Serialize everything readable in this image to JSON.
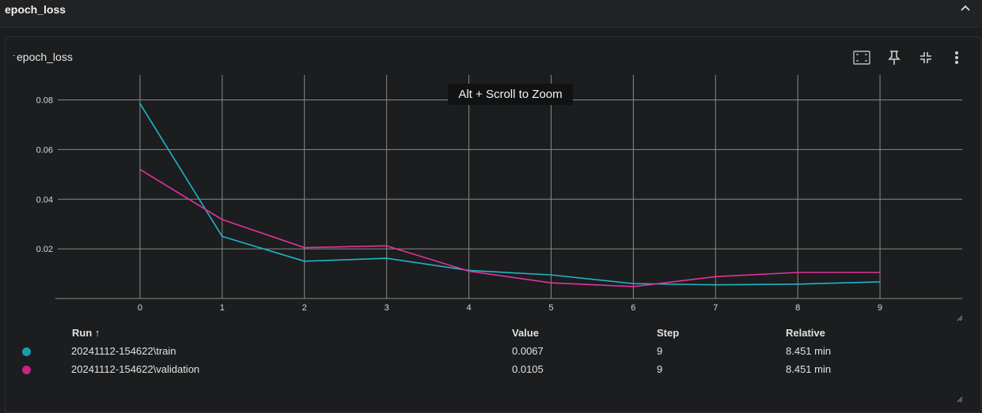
{
  "section": {
    "title": "epoch_loss"
  },
  "card": {
    "title": "epoch_loss"
  },
  "tooltip": "Alt + Scroll to Zoom",
  "icons": [
    "fit-to-domain-icon",
    "pin-icon",
    "collapse-arrows-icon",
    "more-vert-icon"
  ],
  "colors": {
    "train": "#1fb5c9",
    "validation": "#e3339a",
    "grid": "#8a8a8a"
  },
  "chart_data": {
    "type": "line",
    "title": "epoch_loss",
    "x": [
      0,
      1,
      2,
      3,
      4,
      5,
      6,
      7,
      8,
      9
    ],
    "series": [
      {
        "name": "20241112-154622\\train",
        "color": "#1fb5c9",
        "values": [
          0.0785,
          0.025,
          0.015,
          0.0162,
          0.0113,
          0.0095,
          0.006,
          0.0055,
          0.0058,
          0.0067
        ]
      },
      {
        "name": "20241112-154622\\validation",
        "color": "#e3339a",
        "values": [
          0.052,
          0.0318,
          0.0205,
          0.0212,
          0.011,
          0.0063,
          0.0048,
          0.0088,
          0.0105,
          0.0105
        ]
      }
    ],
    "xticks": [
      "0",
      "1",
      "2",
      "3",
      "4",
      "5",
      "6",
      "7",
      "8",
      "9"
    ],
    "yticks": [
      "0.02",
      "0.04",
      "0.06",
      "0.08"
    ],
    "xlim": [
      -1,
      10
    ],
    "ylim": [
      0,
      0.08
    ],
    "grid": true
  },
  "table": {
    "headers": {
      "run": "Run ↑",
      "value": "Value",
      "step": "Step",
      "relative": "Relative"
    },
    "rows": [
      {
        "run": "20241112-154622\\train",
        "value": "0.0067",
        "step": "9",
        "relative": "8.451 min",
        "color": "#1a9bb0"
      },
      {
        "run": "20241112-154622\\validation",
        "value": "0.0105",
        "step": "9",
        "relative": "8.451 min",
        "color": "#c72385"
      }
    ]
  }
}
